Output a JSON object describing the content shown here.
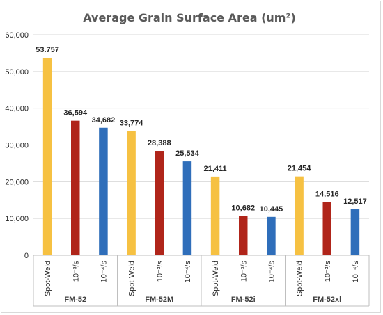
{
  "chart_data": {
    "type": "bar",
    "title": "Average Grain Surface Area (um²)",
    "xlabel": "",
    "ylabel": "",
    "ylim": [
      0,
      60000
    ],
    "yticks": [
      0,
      10000,
      20000,
      30000,
      40000,
      50000,
      60000
    ],
    "ytick_labels": [
      "0",
      "10,000",
      "20,000",
      "30,000",
      "40,000",
      "50,000",
      "60,000"
    ],
    "grid": true,
    "legend": "none",
    "groups": [
      {
        "name": "FM-52",
        "bars": [
          {
            "category": "Spot-Weld",
            "value": 53757,
            "label": "53.757",
            "color": "#F6C142"
          },
          {
            "category": "10⁻³/s",
            "value": 36594,
            "label": "36,594",
            "color": "#B0251A"
          },
          {
            "category": "10⁻⁴/s",
            "value": 34682,
            "label": "34,682",
            "color": "#2F6EBA"
          }
        ]
      },
      {
        "name": "FM-52M",
        "bars": [
          {
            "category": "Spot-Weld",
            "value": 33774,
            "label": "33,774",
            "color": "#F6C142"
          },
          {
            "category": "10⁻³/s",
            "value": 28388,
            "label": "28,388",
            "color": "#B0251A"
          },
          {
            "category": "10⁻⁴/s",
            "value": 25534,
            "label": "25,534",
            "color": "#2F6EBA"
          }
        ]
      },
      {
        "name": "FM-52i",
        "bars": [
          {
            "category": "Spot-Weld",
            "value": 21411,
            "label": "21,411",
            "color": "#F6C142"
          },
          {
            "category": "10⁻³/s",
            "value": 10682,
            "label": "10,682",
            "color": "#B0251A"
          },
          {
            "category": "10⁻⁴/s",
            "value": 10445,
            "label": "10,445",
            "color": "#2F6EBA"
          }
        ]
      },
      {
        "name": "FM-52xl",
        "bars": [
          {
            "category": "Spot-Weld",
            "value": 21454,
            "label": "21,454",
            "color": "#F6C142"
          },
          {
            "category": "10⁻³/s",
            "value": 14516,
            "label": "14,516",
            "color": "#B0251A"
          },
          {
            "category": "10⁻⁴/s",
            "value": 12517,
            "label": "12,517",
            "color": "#2F6EBA"
          }
        ]
      }
    ]
  }
}
